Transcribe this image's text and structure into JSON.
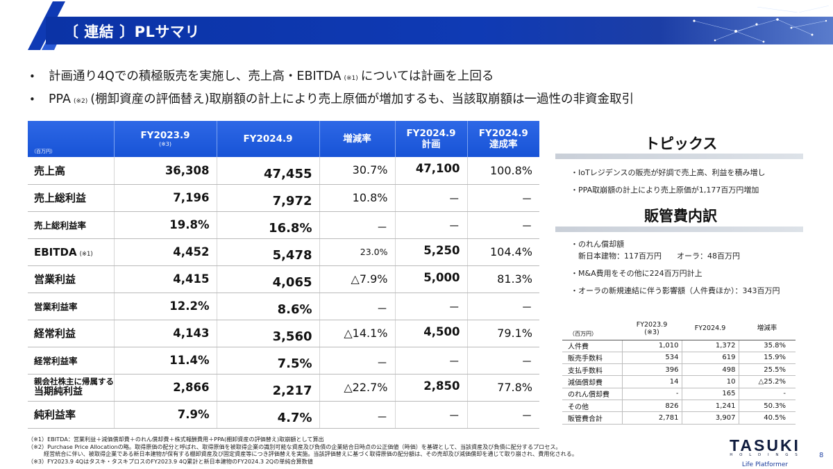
{
  "header": {
    "title": "〔 連結 〕PLサマリ"
  },
  "bullets": {
    "b1_pre": "計画通り4Qでの積極販売を実施し、売上高・EBITDA",
    "b1_note": "(※1)",
    "b1_post": "については計画を上回る",
    "b2_pre": "PPA",
    "b2_note": "(※2)",
    "b2_post": "(棚卸資産の評価替え)取崩額の計上により売上原価が増加するも、当該取崩額は一過性の非資金取引",
    "marker": "•"
  },
  "main_table": {
    "unit": "（百万円）",
    "headers": {
      "fy2023": "FY2023.9",
      "fy2023_note": "(※3)",
      "fy2024": "FY2024.9",
      "change": "増減率",
      "plan_1": "FY2024.9",
      "plan_2": "計画",
      "ach_1": "FY2024.9",
      "ach_2": "達成率"
    },
    "rows": [
      {
        "label": "売上高",
        "fy2023": "36,308",
        "fy2024": "47,455",
        "change": "30.7%",
        "plan": "47,100",
        "achievement": "100.8%"
      },
      {
        "label": "売上総利益",
        "fy2023": "7,196",
        "fy2024": "7,972",
        "change": "10.8%",
        "plan": "－",
        "achievement": "－"
      },
      {
        "label": "売上総利益率",
        "fy2023": "19.8%",
        "fy2024": "16.8%",
        "change": "－",
        "plan": "－",
        "achievement": "－"
      },
      {
        "label": "EBITDA",
        "label_note": "(※1)",
        "fy2023": "4,452",
        "fy2024": "5,478",
        "change": "23.0%",
        "plan": "5,250",
        "achievement": "104.4%"
      },
      {
        "label": "営業利益",
        "fy2023": "4,415",
        "fy2024": "4,065",
        "change": "△7.9%",
        "plan": "5,000",
        "achievement": "81.3%"
      },
      {
        "label": "営業利益率",
        "fy2023": "12.2%",
        "fy2024": "8.6%",
        "change": "－",
        "plan": "－",
        "achievement": "－"
      },
      {
        "label": "経常利益",
        "fy2023": "4,143",
        "fy2024": "3,560",
        "change": "△14.1%",
        "plan": "4,500",
        "achievement": "79.1%"
      },
      {
        "label": "経常利益率",
        "fy2023": "11.4%",
        "fy2024": "7.5%",
        "change": "－",
        "plan": "－",
        "achievement": "－"
      },
      {
        "label_1": "親会社株主に帰属する",
        "label_2": "当期純利益",
        "fy2023": "2,866",
        "fy2024": "2,217",
        "change": "△22.7%",
        "plan": "2,850",
        "achievement": "77.8%"
      },
      {
        "label": "純利益率",
        "fy2023": "7.9%",
        "fy2024": "4.7%",
        "change": "－",
        "plan": "－",
        "achievement": "－"
      }
    ]
  },
  "topics": {
    "title": "トピックス",
    "items": [
      "・IoTレジデンスの販売が好調で売上高、利益を積み増し",
      "・PPA取崩額の計上により売上原価が1,177百万円増加"
    ]
  },
  "sga": {
    "title": "販管費内訳",
    "notes": [
      "・のれん償却額",
      "　新日本建物：117百万円　　オーラ：48百万円",
      "・M&A費用をその他に224百万円計上",
      "・オーラの新規連結に伴う影響額（人件費ほか）：343百万円"
    ],
    "table": {
      "unit": "（百万円）",
      "h_fy2023": "FY2023.9",
      "h_fy2023_note": "(※3)",
      "h_fy2024": "FY2024.9",
      "h_change": "増減率",
      "rows": [
        {
          "label": "人件費",
          "fy2023": "1,010",
          "fy2024": "1,372",
          "change": "35.8%"
        },
        {
          "label": "販売手数料",
          "fy2023": "534",
          "fy2024": "619",
          "change": "15.9%"
        },
        {
          "label": "支払手数料",
          "fy2023": "396",
          "fy2024": "498",
          "change": "25.5%"
        },
        {
          "label": "減価償却費",
          "fy2023": "14",
          "fy2024": "10",
          "change": "△25.2%"
        },
        {
          "label": "のれん償却費",
          "fy2023": "-",
          "fy2024": "165",
          "change": "-"
        },
        {
          "label": "その他",
          "fy2023": "826",
          "fy2024": "1,241",
          "change": "50.3%"
        },
        {
          "label": "販管費合計",
          "fy2023": "2,781",
          "fy2024": "3,907",
          "change": "40.5%"
        }
      ]
    }
  },
  "footnotes": {
    "n1": "（※1）EBITDA：営業利益＋減価償却費＋のれん償却費＋株式報酬費用＋PPA(棚卸資産の評価替え)取崩額として算出",
    "n2": "（※2）Purchase Price Allocationの略。取得原価の配分と呼ばれ、取得原価を被取得企業の識別可能な資産及び負債の企業結合日時点の公正価値（時価）を基礎として、当該資産及び負債に配分するプロセス。",
    "n2b": "経営統合に伴い、被取得企業である新日本建物が保有する棚卸資産及び固定資産等につき評価替えを実施。当該評価替えに基づく取得原価の配分額は、その売却及び減価償却を通じて取り崩され、費用化される。",
    "n3": "（※3）FY2023.9 4Qはタスキ・タスキプロスのFY2023.9 4Q累計と新日本建物のFY2024.3 2Qの単純合算数値"
  },
  "brand": {
    "name": "TASUKI",
    "holdings": "H O L D I N G S",
    "tagline": "Life Platformer"
  },
  "page_number": "8",
  "colors": {
    "header_band": "#0f3ab4",
    "table_header": "#1f5ce0",
    "brand_navy": "#101c3e"
  }
}
